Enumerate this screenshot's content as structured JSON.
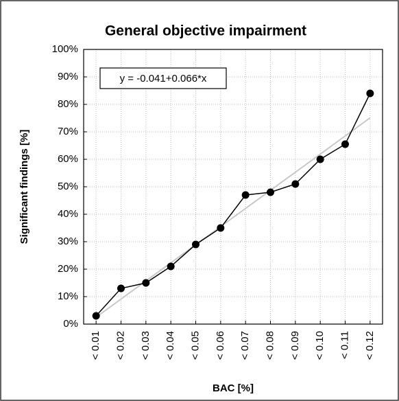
{
  "chart_data": {
    "type": "line",
    "title": "General objective impairment",
    "x_label": "BAC [%]",
    "y_label": "Significant findings [%]",
    "annotation": "y = -0.041+0.066*x",
    "categories": [
      "< 0.01",
      "< 0.02",
      "< 0.03",
      "< 0.04",
      "< 0.05",
      "< 0.06",
      "< 0.07",
      "< 0.08",
      "< 0.09",
      "< 0.10",
      "< 0.11",
      "< 0.12"
    ],
    "series": [
      {
        "color": "#000000",
        "markers": true,
        "values": [
          3,
          13,
          15,
          21,
          29,
          35,
          47,
          48,
          51,
          60,
          65.5,
          84
        ]
      },
      {
        "color": "#c8c8c8",
        "markers": false,
        "values": [
          2.5,
          9.1,
          15.7,
          22.3,
          28.9,
          35.5,
          42.1,
          48.7,
          55.3,
          61.9,
          68.5,
          75.1
        ]
      }
    ],
    "ylim": [
      0,
      100
    ],
    "yticks": [
      {
        "value": 0,
        "label": "0%"
      },
      {
        "value": 10,
        "label": "10%"
      },
      {
        "value": 20,
        "label": "20%"
      },
      {
        "value": 30,
        "label": "30%"
      },
      {
        "value": 40,
        "label": "40%"
      },
      {
        "value": 50,
        "label": "50%"
      },
      {
        "value": 60,
        "label": "60%"
      },
      {
        "value": 70,
        "label": "70%"
      },
      {
        "value": 80,
        "label": "80%"
      },
      {
        "value": 90,
        "label": "90%"
      },
      {
        "value": 100,
        "label": "100%"
      }
    ],
    "grid": true
  }
}
